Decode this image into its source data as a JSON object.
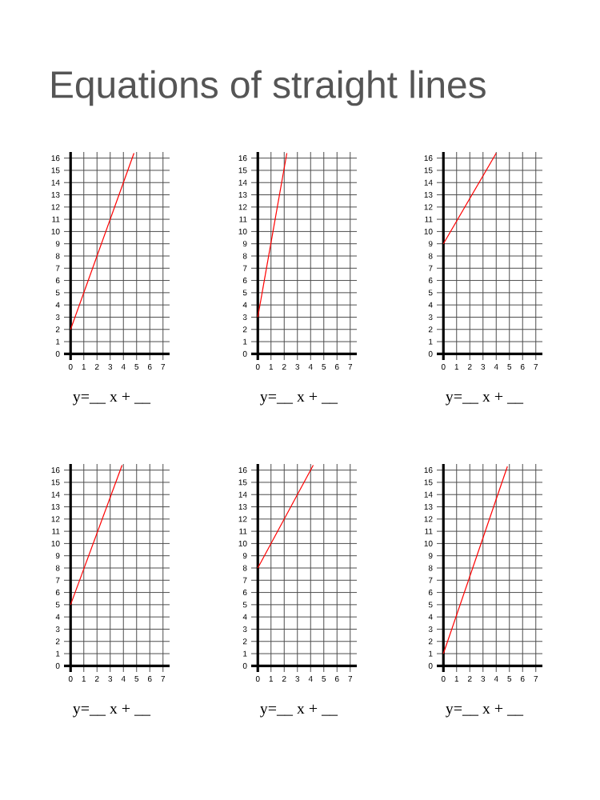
{
  "chart_data": [
    {
      "type": "line",
      "title": "Equations of straight lines",
      "x": [
        0,
        4.8
      ],
      "values": [
        2,
        16.4
      ],
      "color": "#ff0000",
      "xlim": [
        -0.5,
        7.5
      ],
      "ylim": [
        -0.5,
        16.5
      ],
      "xticks": [
        0,
        1,
        2,
        3,
        4,
        5,
        6,
        7
      ],
      "yticks": [
        0,
        1,
        2,
        3,
        4,
        5,
        6,
        7,
        8,
        9,
        10,
        11,
        12,
        13,
        14,
        15,
        16
      ],
      "grid": true,
      "annotations": [
        "y=__ x + __"
      ]
    },
    {
      "type": "line",
      "x": [
        0,
        2.2
      ],
      "values": [
        3,
        16.4
      ],
      "color": "#ff0000",
      "xlim": [
        -0.5,
        7.5
      ],
      "ylim": [
        -0.5,
        16.5
      ],
      "xticks": [
        0,
        1,
        2,
        3,
        4,
        5,
        6,
        7
      ],
      "yticks": [
        0,
        1,
        2,
        3,
        4,
        5,
        6,
        7,
        8,
        9,
        10,
        11,
        12,
        13,
        14,
        15,
        16
      ],
      "grid": true,
      "annotations": [
        "y=__ x + __"
      ]
    },
    {
      "type": "line",
      "x": [
        0,
        4
      ],
      "values": [
        9,
        16.4
      ],
      "color": "#ff0000",
      "xlim": [
        -0.5,
        7.5
      ],
      "ylim": [
        -0.5,
        16.5
      ],
      "xticks": [
        0,
        1,
        2,
        3,
        4,
        5,
        6,
        7
      ],
      "yticks": [
        0,
        1,
        2,
        3,
        4,
        5,
        6,
        7,
        8,
        9,
        10,
        11,
        12,
        13,
        14,
        15,
        16
      ],
      "grid": true,
      "annotations": [
        "y=__ x + __"
      ]
    },
    {
      "type": "line",
      "x": [
        0,
        3.9
      ],
      "values": [
        5,
        16.4
      ],
      "color": "#ff0000",
      "xlim": [
        -0.5,
        7.5
      ],
      "ylim": [
        -0.5,
        16.5
      ],
      "xticks": [
        0,
        1,
        2,
        3,
        4,
        5,
        6,
        7
      ],
      "yticks": [
        0,
        1,
        2,
        3,
        4,
        5,
        6,
        7,
        8,
        9,
        10,
        11,
        12,
        13,
        14,
        15,
        16
      ],
      "grid": true,
      "annotations": [
        "y=__ x + __"
      ]
    },
    {
      "type": "line",
      "x": [
        0,
        4.2
      ],
      "values": [
        8,
        16.4
      ],
      "color": "#ff0000",
      "xlim": [
        -0.5,
        7.5
      ],
      "ylim": [
        -0.5,
        16.5
      ],
      "xticks": [
        0,
        1,
        2,
        3,
        4,
        5,
        6,
        7
      ],
      "yticks": [
        0,
        1,
        2,
        3,
        4,
        5,
        6,
        7,
        8,
        9,
        10,
        11,
        12,
        13,
        14,
        15,
        16
      ],
      "grid": true,
      "annotations": [
        "y=__ x + __"
      ]
    },
    {
      "type": "line",
      "x": [
        0,
        4.85
      ],
      "values": [
        1,
        16.3
      ],
      "color": "#ff0000",
      "xlim": [
        -0.5,
        7.5
      ],
      "ylim": [
        -0.5,
        16.5
      ],
      "xticks": [
        0,
        1,
        2,
        3,
        4,
        5,
        6,
        7
      ],
      "yticks": [
        0,
        1,
        2,
        3,
        4,
        5,
        6,
        7,
        8,
        9,
        10,
        11,
        12,
        13,
        14,
        15,
        16
      ],
      "grid": true,
      "annotations": [
        "y=__ x + __"
      ]
    }
  ]
}
